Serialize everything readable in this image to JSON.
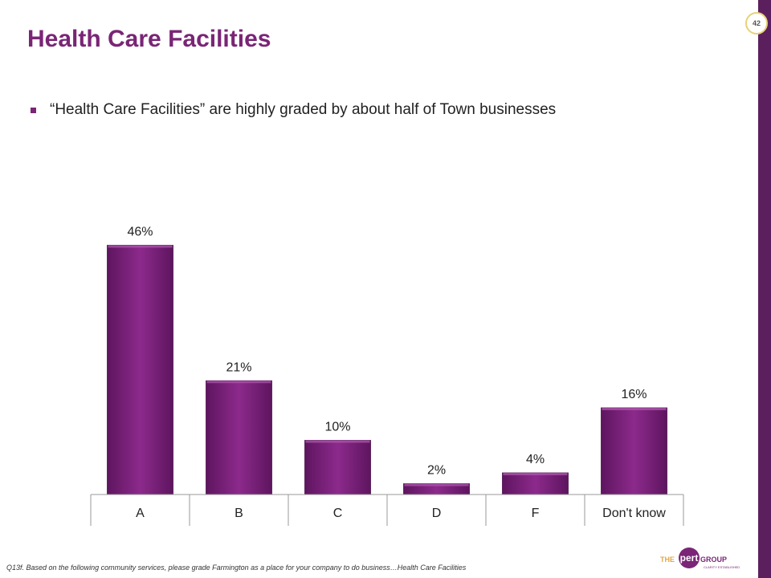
{
  "page": {
    "title": "Health Care Facilities",
    "page_number": "42",
    "bullet": "“Health Care Facilities” are highly graded by about half of Town businesses",
    "footnote": "Q13f. Based on the following community services, please grade Farmington as a place for your company to do business…Health Care Facilities",
    "logo": {
      "prefix": "THE",
      "word": "pert",
      "suffix": "GROUP",
      "tagline": "CLARITY ESTABLISHED"
    }
  },
  "colors": {
    "accent": "#7a2576",
    "bar": "#7d1f7e",
    "sidebar": "#5c1f5e"
  },
  "chart_data": {
    "type": "bar",
    "categories": [
      "A",
      "B",
      "C",
      "D",
      "F",
      "Don't know"
    ],
    "values": [
      46,
      21,
      10,
      2,
      4,
      16
    ],
    "data_labels": [
      "46%",
      "21%",
      "10%",
      "2%",
      "4%",
      "16%"
    ],
    "ylim": [
      0,
      50
    ],
    "grid": false,
    "legend": "none"
  }
}
